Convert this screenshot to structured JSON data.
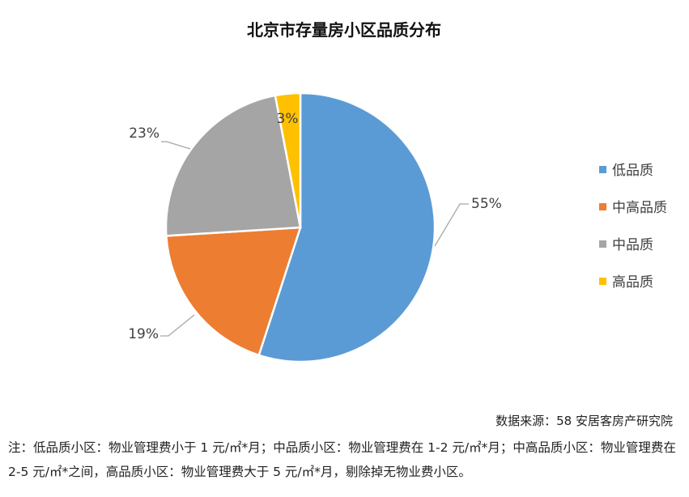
{
  "chart_data": {
    "type": "pie",
    "title": "北京市存量房小区品质分布",
    "slices": [
      {
        "name": "低品质",
        "value": 55,
        "label": "55%",
        "color": "#5b9bd5"
      },
      {
        "name": "中高品质",
        "value": 19,
        "label": "19%",
        "color": "#ed7d31"
      },
      {
        "name": "中品质",
        "value": 23,
        "label": "23%",
        "color": "#a5a5a5"
      },
      {
        "name": "高品质",
        "value": 3,
        "label": "3%",
        "color": "#ffc000"
      }
    ],
    "legend_order": [
      "低品质",
      "中高品质",
      "中品质",
      "高品质"
    ],
    "legend_position": "right"
  },
  "source": "数据来源：58 安居客房产研究院",
  "note": "注：低品质小区：物业管理费小于 1 元/㎡*月；中品质小区：物业管理费在 1-2 元/㎡*月；中高品质小区：物业管理费在 2-5 元/㎡*之间，高品质小区：物业管理费大于 5 元/㎡*月，剔除掉无物业费小区。"
}
